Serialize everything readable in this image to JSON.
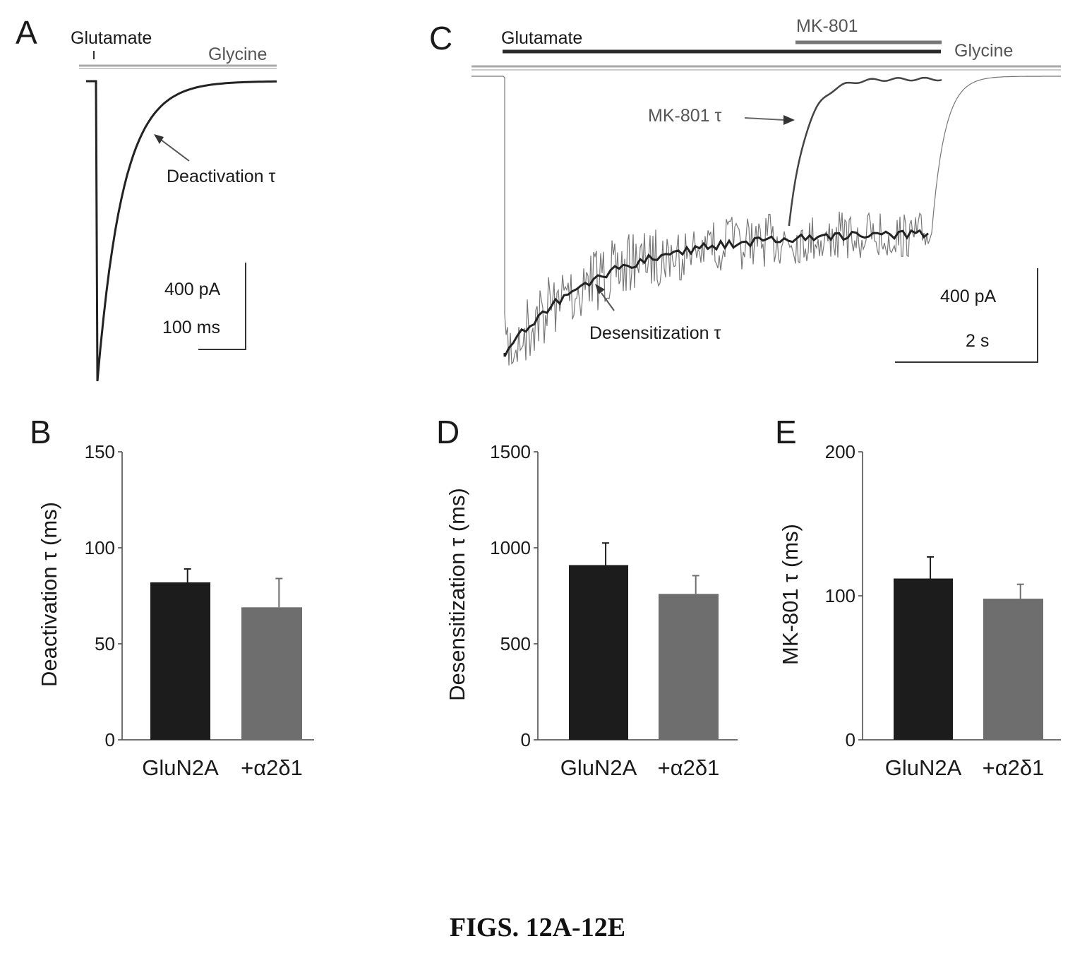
{
  "panels": {
    "A": {
      "letter": "A",
      "stim_left": "Glutamate",
      "stim_right": "Glycine",
      "arrow_label": "Deactivation τ",
      "scale_y": "400 pA",
      "scale_x": "100 ms"
    },
    "C": {
      "letter": "C",
      "stim_glutamate": "Glutamate",
      "stim_mk801": "MK-801",
      "stim_glycine": "Glycine",
      "arrow_mk801": "MK-801 τ",
      "arrow_desens": "Desensitization τ",
      "scale_y": "400 pA",
      "scale_x": "2 s"
    }
  },
  "colors": {
    "black_bar": "#1c1c1c",
    "gray_bar": "#6e6e6e",
    "trace_dark": "#222222",
    "trace_gray": "#777777"
  },
  "chart_data": [
    {
      "panel": "B",
      "type": "bar",
      "categories": [
        "GluN2A",
        "+α2δ1"
      ],
      "values": [
        82,
        69
      ],
      "errors": [
        7,
        15
      ],
      "ylabel": "Deactivation τ (ms)",
      "ylim": [
        0,
        150
      ],
      "yticks": [
        0,
        50,
        100,
        150
      ]
    },
    {
      "panel": "D",
      "type": "bar",
      "categories": [
        "GluN2A",
        "+α2δ1"
      ],
      "values": [
        910,
        760
      ],
      "errors": [
        115,
        95
      ],
      "ylabel": "Desensitization τ (ms)",
      "ylim": [
        0,
        1500
      ],
      "yticks": [
        0,
        500,
        1000,
        1500
      ]
    },
    {
      "panel": "E",
      "type": "bar",
      "categories": [
        "GluN2A",
        "+α2δ1"
      ],
      "values": [
        112,
        98
      ],
      "errors": [
        15,
        10
      ],
      "ylabel": "MK-801 τ (ms)",
      "ylim": [
        0,
        200
      ],
      "yticks": [
        0,
        100,
        200
      ]
    }
  ],
  "caption": "FIGS. 12A-12E"
}
